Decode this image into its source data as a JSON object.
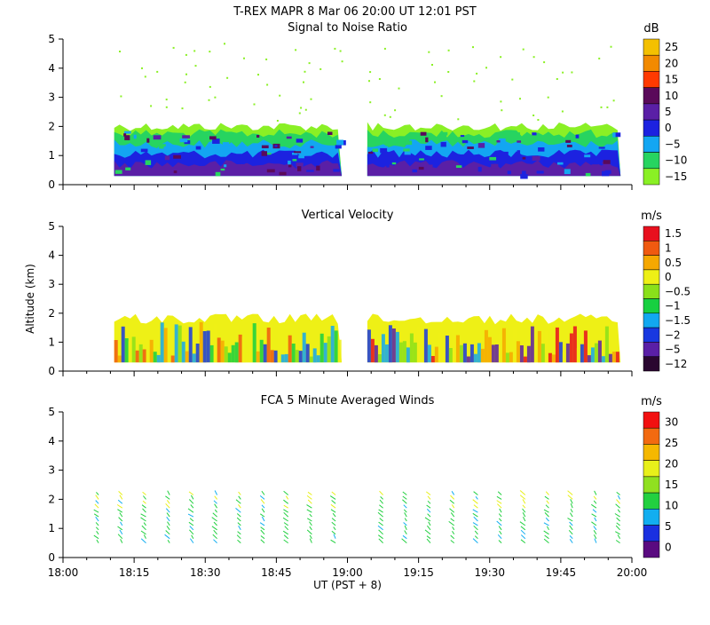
{
  "header": {
    "title": "T-REX   MAPR   8 Mar 06   20:00 UT   12:01   PST"
  },
  "chart_data": {
    "type": "heatmap",
    "time_ticks": [
      "18:00",
      "18:15",
      "18:30",
      "18:45",
      "19:00",
      "19:15",
      "19:30",
      "19:45",
      "20:00"
    ],
    "xlabel": "UT  (PST + 8)",
    "ylabel": "Altitude (km)",
    "yticks": [
      "0",
      "1",
      "2",
      "3",
      "4",
      "5"
    ],
    "ylim": [
      0,
      5
    ],
    "xlim_hours": [
      18.0,
      20.0
    ],
    "data_gap_hours": [
      18.98,
      19.07
    ],
    "panels": [
      {
        "id": "snr",
        "title": "Signal to Noise Ratio",
        "unit": "dB",
        "colorbar_labels": [
          "25",
          "20",
          "15",
          "10",
          "5",
          "0",
          "−5",
          "−10",
          "−15"
        ],
        "colorbar_colors": [
          "#f4c000",
          "#f28a00",
          "#ff3a00",
          "#5a0a5a",
          "#5a1fa6",
          "#1c22e0",
          "#13a6f2",
          "#27d460",
          "#8af025"
        ],
        "layers_km": [
          {
            "name": "snr -15 to -10",
            "bottom": 0.3,
            "top": 2.0,
            "color": "#8af025"
          },
          {
            "name": "snr -10 to -5",
            "bottom": 0.3,
            "top": 1.75,
            "color": "#27d460"
          },
          {
            "name": "snr -5 to 0",
            "bottom": 0.3,
            "top": 1.4,
            "color": "#13a6f2"
          },
          {
            "name": "snr 0 to 5",
            "bottom": 0.3,
            "top": 1.05,
            "color": "#1c22e0"
          },
          {
            "name": "snr 5 to 10",
            "bottom": 0.3,
            "top": 0.7,
            "color": "#5a1fa6"
          }
        ]
      },
      {
        "id": "vv",
        "title": "Vertical Velocity",
        "unit": "m/s",
        "colorbar_labels": [
          "1.5",
          "1",
          "0.5",
          "0",
          "−0.5",
          "−1",
          "−1.5",
          "−2",
          "−5",
          "−12"
        ],
        "colorbar_colors": [
          "#e8101e",
          "#f05a10",
          "#f6a800",
          "#eef016",
          "#8ae01a",
          "#17d040",
          "#12a8f0",
          "#1838e0",
          "#5a1fa6",
          "#2a0630"
        ],
        "layers_km": [
          {
            "name": "vv mixed field",
            "bottom": 0.3,
            "top": 1.8,
            "color": "#eef016"
          }
        ]
      },
      {
        "id": "winds",
        "title": "FCA 5 Minute Averaged Winds",
        "unit": "m/s",
        "colorbar_labels": [
          "30",
          "25",
          "20",
          "15",
          "10",
          "5",
          "0"
        ],
        "colorbar_colors": [
          "#f21010",
          "#f26a10",
          "#f5b800",
          "#e8f01a",
          "#90e020",
          "#22d040",
          "#12aef0",
          "#1a30e0",
          "#5a0a80"
        ],
        "barb_times_hours": [
          18.125,
          18.2083,
          18.2917,
          18.375,
          18.4583,
          18.5417,
          18.625,
          18.7083,
          18.7917,
          18.875,
          18.9583,
          19.125,
          19.2083,
          19.2917,
          19.375,
          19.4583,
          19.5417,
          19.625,
          19.7083,
          19.7917,
          19.875,
          19.9583
        ],
        "barb_altitude_range_km": [
          0.5,
          2.2
        ]
      }
    ]
  }
}
